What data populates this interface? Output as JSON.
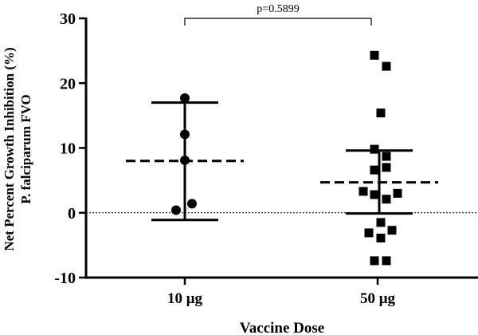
{
  "chart_data": {
    "type": "scatter",
    "xlabel": "Vaccine Dose",
    "ylabel_lines": [
      "Net Percent Growth Inhibition (%)",
      "P. falciparum  FVO"
    ],
    "ylim": [
      -10,
      30
    ],
    "yticks": [
      30,
      20,
      10,
      0,
      -10
    ],
    "reference_line_y": 0,
    "categories": [
      "10 μg",
      "50 μg"
    ],
    "groups": [
      {
        "category": "10 μg",
        "marker": "circle",
        "values": [
          17.7,
          12.1,
          8.1,
          1.4,
          0.4
        ],
        "mean": 8.0,
        "sd_upper": 17.0,
        "sd_lower": -1.1
      },
      {
        "category": "50 μg",
        "marker": "square",
        "values": [
          24.3,
          22.6,
          15.4,
          9.8,
          8.7,
          6.6,
          7.0,
          3.3,
          2.8,
          3.0,
          2.1,
          -1.5,
          -3.1,
          -2.7,
          -3.9,
          -7.4,
          -7.4
        ],
        "mean": 4.7,
        "sd_upper": 9.6,
        "sd_lower": -0.1
      }
    ],
    "annotation": {
      "text": "p=0.5899",
      "between": [
        "10 μg",
        "50 μg"
      ]
    },
    "grid": false,
    "color": "#000000"
  }
}
